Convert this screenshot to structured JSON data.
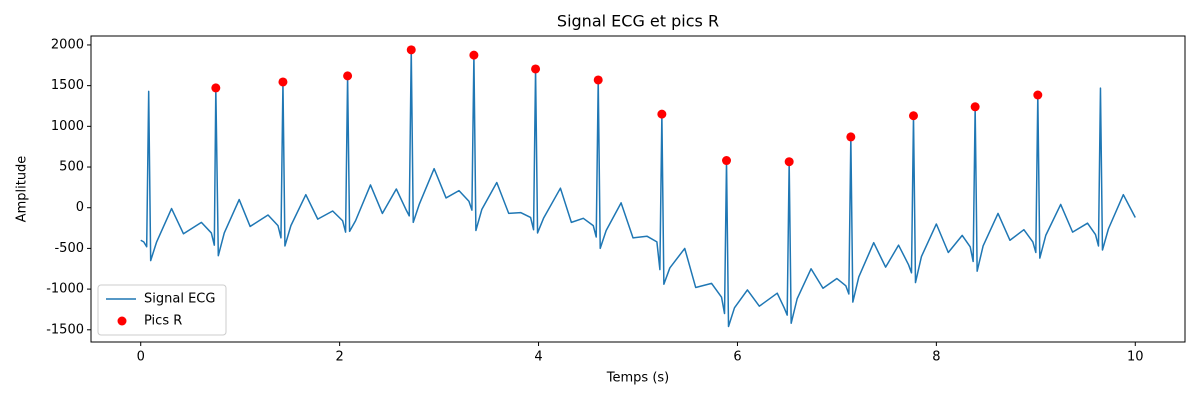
{
  "chart_data": {
    "type": "line",
    "title": "Signal ECG et pics R",
    "xlabel": "Temps (s)",
    "ylabel": "Amplitude",
    "xlim": [
      -0.5,
      10.5
    ],
    "ylim": [
      -1650,
      2110
    ],
    "xticks": [
      0,
      2,
      4,
      6,
      8,
      10
    ],
    "yticks": [
      -1500,
      -1000,
      -500,
      0,
      500,
      1000,
      1500,
      2000
    ],
    "legend": "lower left",
    "series": [
      {
        "name": "Signal ECG",
        "type": "line",
        "color": "#1f77b4",
        "x": [
          0,
          0.03,
          0.06,
          0.08,
          0.1,
          0.16,
          0.31,
          0.43,
          0.61,
          0.71,
          0.74,
          0.755,
          0.78,
          0.84,
          0.99,
          1.1,
          1.28,
          1.38,
          1.41,
          1.43,
          1.45,
          1.51,
          1.66,
          1.78,
          1.93,
          2.03,
          2.06,
          2.08,
          2.1,
          2.16,
          2.31,
          2.43,
          2.57,
          2.67,
          2.7,
          2.72,
          2.74,
          2.8,
          2.95,
          3.07,
          3.2,
          3.3,
          3.33,
          3.35,
          3.37,
          3.43,
          3.58,
          3.7,
          3.82,
          3.92,
          3.95,
          3.97,
          3.99,
          4.05,
          4.22,
          4.33,
          4.45,
          4.55,
          4.58,
          4.6,
          4.62,
          4.68,
          4.83,
          4.95,
          5.09,
          5.19,
          5.22,
          5.24,
          5.26,
          5.32,
          5.47,
          5.58,
          5.74,
          5.84,
          5.87,
          5.89,
          5.91,
          5.97,
          6.1,
          6.22,
          6.4,
          6.47,
          6.5,
          6.52,
          6.54,
          6.6,
          6.74,
          6.86,
          7.0,
          7.09,
          7.12,
          7.14,
          7.16,
          7.22,
          7.37,
          7.49,
          7.62,
          7.72,
          7.75,
          7.77,
          7.79,
          7.85,
          8.0,
          8.12,
          8.26,
          8.34,
          8.37,
          8.39,
          8.41,
          8.47,
          8.62,
          8.74,
          8.88,
          8.97,
          9.0,
          9.02,
          9.04,
          9.1,
          9.25,
          9.37,
          9.52,
          9.6,
          9.63,
          9.65,
          9.67,
          9.73,
          9.88,
          10.0
        ],
        "values": [
          -400,
          -420,
          -480,
          1430,
          -650,
          -420,
          -10,
          -320,
          -180,
          -310,
          -460,
          1472,
          -590,
          -310,
          100,
          -230,
          -90,
          -220,
          -370,
          1545,
          -470,
          -220,
          160,
          -140,
          -40,
          -160,
          -300,
          1620,
          -290,
          -160,
          280,
          -70,
          230,
          -30,
          -100,
          1940,
          -180,
          40,
          480,
          120,
          210,
          80,
          -30,
          1875,
          -280,
          -20,
          310,
          -70,
          -60,
          -120,
          -270,
          1705,
          -310,
          -130,
          240,
          -180,
          -130,
          -220,
          -360,
          1570,
          -500,
          -280,
          60,
          -370,
          -350,
          -420,
          -760,
          1150,
          -940,
          -740,
          -500,
          -980,
          -930,
          -1100,
          -1300,
          580,
          -1460,
          -1230,
          -1010,
          -1210,
          -1050,
          -1230,
          -1320,
          565,
          -1420,
          -1120,
          -750,
          -990,
          -870,
          -960,
          -1060,
          870,
          -1160,
          -850,
          -430,
          -730,
          -460,
          -700,
          -800,
          1130,
          -920,
          -600,
          -200,
          -550,
          -340,
          -480,
          -660,
          1240,
          -780,
          -470,
          -70,
          -400,
          -270,
          -420,
          -550,
          1385,
          -620,
          -340,
          40,
          -300,
          -190,
          -330,
          -470,
          1470,
          -520,
          -260,
          160,
          -120
        ]
      },
      {
        "name": "Pics R",
        "type": "scatter",
        "color": "#ff0000",
        "x": [
          0.755,
          1.43,
          2.08,
          2.72,
          3.35,
          3.97,
          4.6,
          5.24,
          5.89,
          6.52,
          7.14,
          7.77,
          8.39,
          9.02
        ],
        "values": [
          1472,
          1545,
          1620,
          1940,
          1875,
          1705,
          1570,
          1150,
          580,
          565,
          870,
          1130,
          1240,
          1385
        ]
      }
    ]
  }
}
